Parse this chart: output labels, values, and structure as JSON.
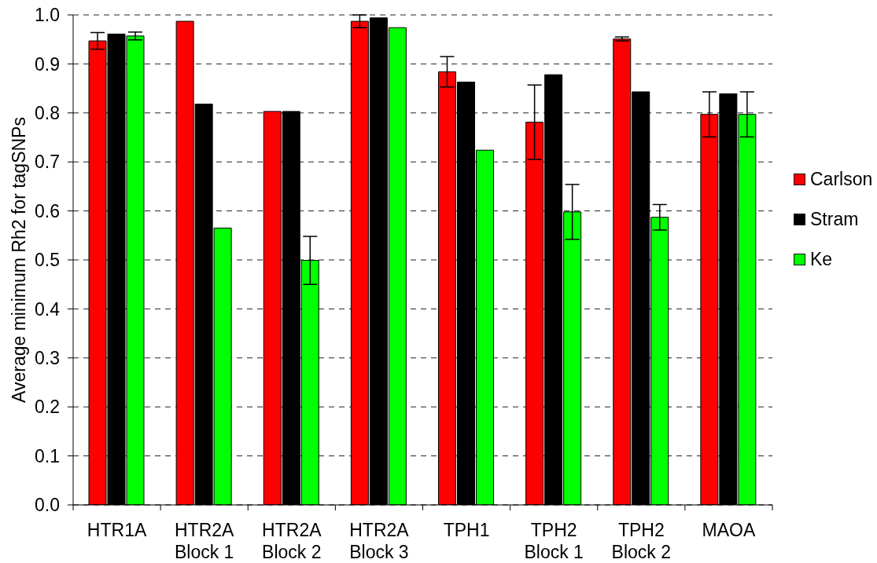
{
  "chart_data": {
    "type": "bar",
    "ylabel": "Average minimum Rh2 for tagSNPs",
    "categories": [
      "HTR1A",
      "HTR2A Block 1",
      "HTR2A Block 2",
      "HTR2A Block 3",
      "TPH1",
      "TPH2 Block 1",
      "TPH2 Block 2",
      "MAOA"
    ],
    "series": [
      {
        "name": "Carlson",
        "color": "#ff0000",
        "values": [
          0.947,
          0.987,
          0.803,
          0.987,
          0.884,
          0.781,
          0.951,
          0.797
        ],
        "errors": [
          0.017,
          null,
          null,
          0.013,
          0.031,
          0.076,
          0.004,
          0.046
        ]
      },
      {
        "name": "Stram",
        "color": "#000000",
        "values": [
          0.961,
          0.818,
          0.803,
          0.994,
          0.863,
          0.878,
          0.843,
          0.839
        ]
      },
      {
        "name": "Ke",
        "color": "#00ff00",
        "values": [
          0.957,
          0.565,
          0.499,
          0.974,
          0.724,
          0.598,
          0.587,
          0.797
        ],
        "errors": [
          0.008,
          null,
          0.049,
          null,
          null,
          0.056,
          0.026,
          0.046
        ]
      }
    ],
    "ylim": [
      0,
      1
    ],
    "yticks": [
      {
        "value": 0,
        "label": "0.0"
      },
      0.1,
      0.2,
      0.3,
      0.4,
      0.5,
      0.6,
      0.7,
      0.8,
      0.9,
      {
        "value": 1,
        "label": "1.0"
      }
    ],
    "grid": "y",
    "legend": "right"
  }
}
